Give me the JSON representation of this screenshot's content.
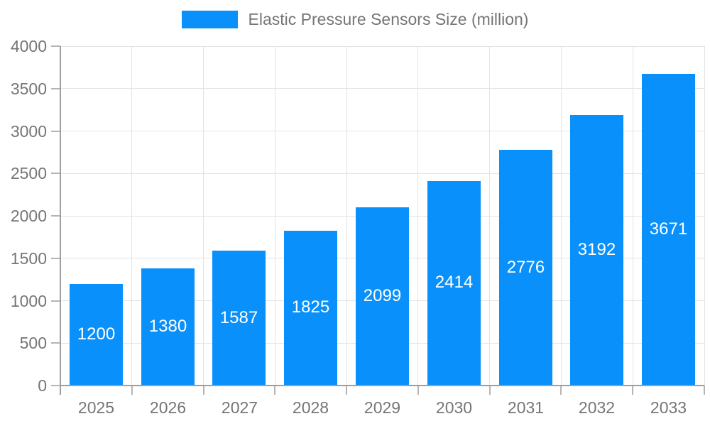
{
  "legend": {
    "label": "Elastic Pressure Sensors Size (million)"
  },
  "colors": {
    "bar": "#0a90fa",
    "grid": "#e3e3e3",
    "axis": "#9e9e9e",
    "tick": "#b5b5b5",
    "tick_text": "#757575",
    "value_label": "#ffffff"
  },
  "chart_data": {
    "type": "bar",
    "title": "",
    "legend_entries": [
      "Elastic Pressure Sensors Size (million)"
    ],
    "legend_position": "top-center",
    "categories": [
      "2025",
      "2026",
      "2027",
      "2028",
      "2029",
      "2030",
      "2031",
      "2032",
      "2033"
    ],
    "values": [
      1200,
      1380,
      1587,
      1825,
      2099,
      2414,
      2776,
      3192,
      3671
    ],
    "xlabel": "",
    "ylabel": "",
    "ylim": [
      0,
      4000
    ],
    "ytick_step": 500,
    "ytick_labels": [
      "0",
      "500",
      "1000",
      "1500",
      "2000",
      "2500",
      "3000",
      "3500",
      "4000"
    ],
    "grid": true,
    "value_labels": "inside-center-white"
  }
}
